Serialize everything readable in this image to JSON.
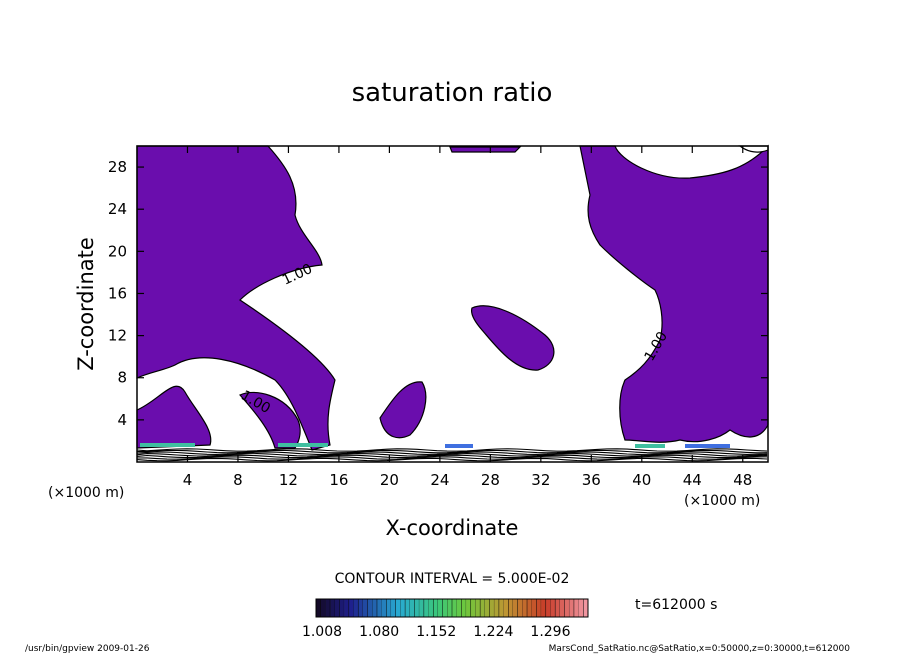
{
  "chart_data": {
    "type": "contour",
    "title": "saturation ratio",
    "xlabel": "X-coordinate",
    "ylabel": "Z-coordinate",
    "x_unit_left": "(×1000 m)",
    "x_unit_right": "(×1000 m)",
    "xlim": [
      0,
      50
    ],
    "ylim": [
      0,
      30
    ],
    "x_ticks": [
      4,
      8,
      12,
      16,
      20,
      24,
      28,
      32,
      36,
      40,
      44,
      48
    ],
    "y_ticks": [
      4,
      8,
      12,
      16,
      20,
      24,
      28
    ],
    "contour_labels": [
      "1.00",
      "1.00",
      "1.00"
    ],
    "contour_interval": "CONTOUR INTERVAL = 5.000E-02",
    "time_label": "t=612000 s",
    "colorbar_ticks": [
      "1.008",
      "1.080",
      "1.152",
      "1.224",
      "1.296"
    ],
    "colorbar_range": [
      1.008,
      1.296
    ],
    "fill_color": "#6a0dad",
    "footer_left": "/usr/bin/gpview  2009-01-26",
    "footer_right": "MarsCond_SatRatio.nc@SatRatio,x=0:50000,z=0:30000,t=612000"
  }
}
